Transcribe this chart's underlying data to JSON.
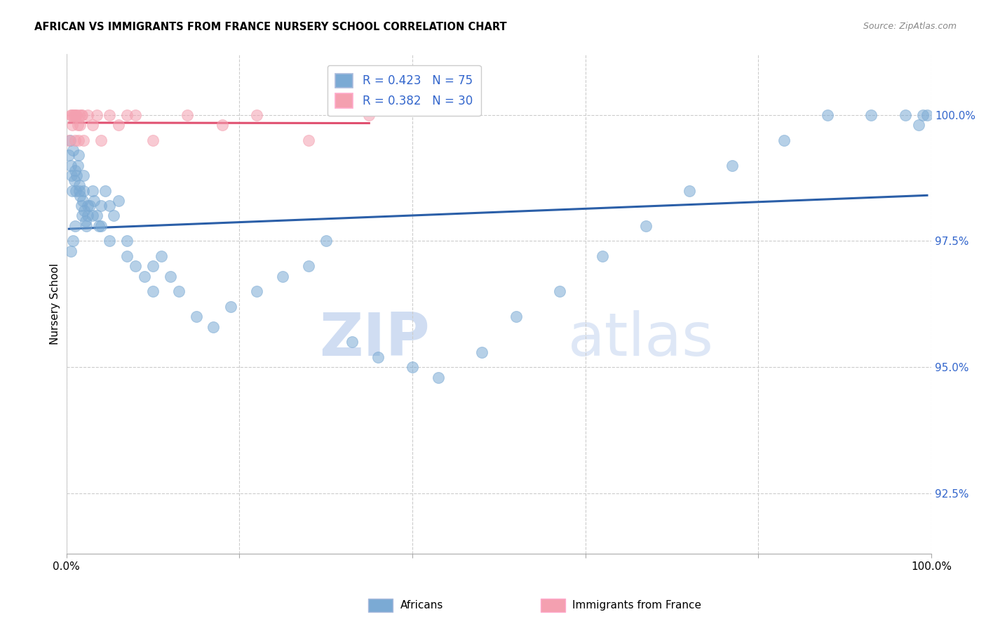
{
  "title": "AFRICAN VS IMMIGRANTS FROM FRANCE NURSERY SCHOOL CORRELATION CHART",
  "source": "Source: ZipAtlas.com",
  "ylabel": "Nursery School",
  "legend_label_blue": "Africans",
  "legend_label_pink": "Immigrants from France",
  "r_blue": 0.423,
  "n_blue": 75,
  "r_pink": 0.382,
  "n_pink": 30,
  "ytick_labels": [
    "92.5%",
    "95.0%",
    "97.5%",
    "100.0%"
  ],
  "ytick_values": [
    92.5,
    95.0,
    97.5,
    100.0
  ],
  "xlim": [
    0.0,
    100.0
  ],
  "ylim": [
    91.3,
    101.2
  ],
  "watermark_zip": "ZIP",
  "watermark_atlas": "atlas",
  "blue_color": "#7BAAD4",
  "pink_color": "#F4A0B0",
  "blue_line_color": "#2B5FA8",
  "pink_line_color": "#E05070",
  "africans_x": [
    0.3,
    0.4,
    0.5,
    0.6,
    0.7,
    0.8,
    0.9,
    1.0,
    1.1,
    1.2,
    1.3,
    1.4,
    1.5,
    1.6,
    1.7,
    1.8,
    1.9,
    2.0,
    2.1,
    2.2,
    2.3,
    2.5,
    2.7,
    3.0,
    3.2,
    3.5,
    3.8,
    4.0,
    4.5,
    5.0,
    5.5,
    6.0,
    7.0,
    8.0,
    9.0,
    10.0,
    11.0,
    12.0,
    13.0,
    15.0,
    17.0,
    19.0,
    22.0,
    25.0,
    28.0,
    30.0,
    33.0,
    36.0,
    40.0,
    43.0,
    48.0,
    52.0,
    57.0,
    62.0,
    67.0,
    72.0,
    77.0,
    83.0,
    88.0,
    93.0,
    97.0,
    98.5,
    99.0,
    99.5,
    0.5,
    0.8,
    1.0,
    1.5,
    2.0,
    2.5,
    3.0,
    4.0,
    5.0,
    7.0,
    10.0
  ],
  "africans_y": [
    99.2,
    99.5,
    99.0,
    98.8,
    98.5,
    99.3,
    98.7,
    98.9,
    98.5,
    98.8,
    99.0,
    99.2,
    98.6,
    98.4,
    98.2,
    98.0,
    98.3,
    98.5,
    98.1,
    97.9,
    97.8,
    98.0,
    98.2,
    98.5,
    98.3,
    98.0,
    97.8,
    98.2,
    98.5,
    98.2,
    98.0,
    98.3,
    97.5,
    97.0,
    96.8,
    96.5,
    97.2,
    96.8,
    96.5,
    96.0,
    95.8,
    96.2,
    96.5,
    96.8,
    97.0,
    97.5,
    95.5,
    95.2,
    95.0,
    94.8,
    95.3,
    96.0,
    96.5,
    97.2,
    97.8,
    98.5,
    99.0,
    99.5,
    100.0,
    100.0,
    100.0,
    99.8,
    100.0,
    100.0,
    97.3,
    97.5,
    97.8,
    98.5,
    98.8,
    98.2,
    98.0,
    97.8,
    97.5,
    97.2,
    97.0
  ],
  "france_x": [
    0.3,
    0.5,
    0.6,
    0.7,
    0.8,
    0.9,
    1.0,
    1.1,
    1.2,
    1.3,
    1.4,
    1.5,
    1.6,
    1.7,
    1.8,
    2.0,
    2.5,
    3.0,
    3.5,
    4.0,
    5.0,
    6.0,
    7.0,
    8.0,
    10.0,
    14.0,
    18.0,
    22.0,
    28.0,
    35.0
  ],
  "france_y": [
    99.5,
    100.0,
    100.0,
    99.8,
    100.0,
    100.0,
    99.5,
    100.0,
    100.0,
    99.8,
    99.5,
    100.0,
    99.8,
    100.0,
    100.0,
    99.5,
    100.0,
    99.8,
    100.0,
    99.5,
    100.0,
    99.8,
    100.0,
    100.0,
    99.5,
    100.0,
    99.8,
    100.0,
    99.5,
    100.0
  ]
}
